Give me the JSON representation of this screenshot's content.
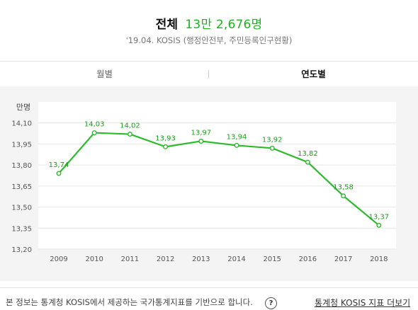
{
  "header": {
    "label": "전체",
    "value": "13만 2,676명",
    "source": "'19.04. KOSIS (행정안전부, 주민등록인구현황)"
  },
  "tabs": [
    {
      "label": "월별",
      "active": false
    },
    {
      "label": "연도별",
      "active": true
    }
  ],
  "chart_data": {
    "type": "line",
    "ylabel": "만명",
    "x": [
      "2009",
      "2010",
      "2011",
      "2012",
      "2013",
      "2014",
      "2015",
      "2016",
      "2017",
      "2018"
    ],
    "y_ticks": [
      "13.20",
      "13.35",
      "13.50",
      "13.65",
      "13.80",
      "13.95",
      "14.10"
    ],
    "ylim": [
      13.2,
      14.25
    ],
    "series": [
      {
        "values": [
          13.74,
          14.03,
          14.02,
          13.93,
          13.97,
          13.94,
          13.92,
          13.82,
          13.58,
          13.37
        ],
        "labels": [
          "13,74",
          "14,03",
          "14,02",
          "13,93",
          "13,97",
          "13,94",
          "13,92",
          "13,82",
          "13,58",
          "13,37"
        ],
        "color": "#2dbb2d"
      }
    ],
    "y_tick_labels": [
      "13,20",
      "13,35",
      "13,50",
      "13,65",
      "13,80",
      "13,95",
      "14,10"
    ],
    "grid": true,
    "legend": "none"
  },
  "footer": {
    "note": "본 정보는 통계청 KOSIS에서 제공하는 국가통계지표를 기반으로 합니다.",
    "help_icon": "?",
    "more_link": "통계청 KOSIS 지표 더보기"
  }
}
